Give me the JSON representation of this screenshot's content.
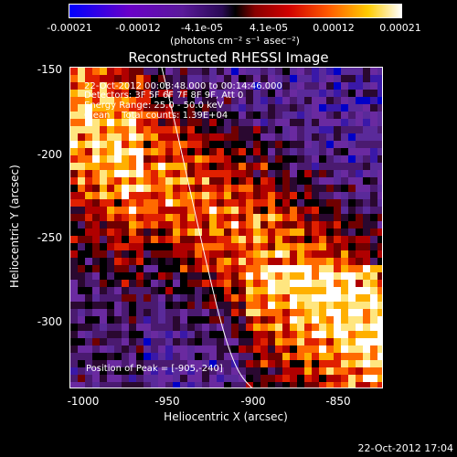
{
  "colorbar": {
    "ticks": [
      "-0.00021",
      "-0.00012",
      "-4.1e-05",
      "4.1e-05",
      "0.00012",
      "0.00021"
    ],
    "units": "(photons cm⁻² s⁻¹ asec⁻²)"
  },
  "title": "Reconstructed RHESSI Image",
  "info": {
    "time_range": "22-Oct-2012 00:08:48.000 to 00:14:46.000",
    "detectors": "Detectors: 3F 5F 6F 7F 8F 9F, Att 0",
    "energy": "Energy Range: 25.0 - 50.0 keV",
    "clean": "Clean    Total counts: 1.39E+04"
  },
  "peak": "Position of Peak = [-905,-240]",
  "axes": {
    "ylabel": "Heliocentric Y (arcsec)",
    "xlabel": "Heliocentric X (arcsec)",
    "yticks": [
      "-150",
      "-200",
      "-250",
      "-300"
    ],
    "xticks": [
      "-1000",
      "-950",
      "-900",
      "-850"
    ]
  },
  "timestamp": "22-Oct-2012 17:04"
}
